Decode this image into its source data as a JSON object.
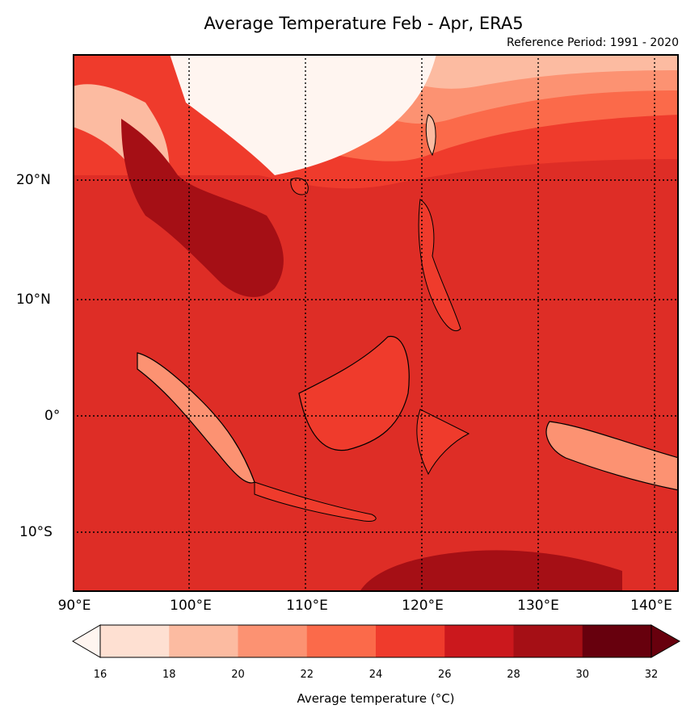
{
  "title": "Average Temperature Feb - Apr, ERA5",
  "subtitle": "Reference Period: 1991 - 2020",
  "map": {
    "lon_range": [
      90,
      142
    ],
    "lat_range": [
      -15,
      31
    ],
    "lon_ticks": [
      {
        "value": 90,
        "label": "90°E"
      },
      {
        "value": 100,
        "label": "100°E"
      },
      {
        "value": 110,
        "label": "110°E"
      },
      {
        "value": 120,
        "label": "120°E"
      },
      {
        "value": 130,
        "label": "130°E"
      },
      {
        "value": 140,
        "label": "140°E"
      }
    ],
    "lat_ticks": [
      {
        "value": 20,
        "label": "20°N"
      },
      {
        "value": 10,
        "label": "10°N"
      },
      {
        "value": 0,
        "label": "0°"
      },
      {
        "value": -10,
        "label": "10°S"
      }
    ],
    "gridlines": "dotted"
  },
  "colorbar": {
    "label": "Average temperature (°C)",
    "extend": "both",
    "levels": [
      16,
      18,
      20,
      22,
      24,
      26,
      28,
      30,
      32
    ],
    "colors": [
      "#fee0d2",
      "#fcbba1",
      "#fc9272",
      "#fb6a4a",
      "#ef3b2c",
      "#cb181d",
      "#a50f15",
      "#67000d"
    ],
    "under_color": "#fff5f0",
    "over_color": "#67000d",
    "tick_labels": [
      "16",
      "18",
      "20",
      "22",
      "24",
      "26",
      "28",
      "30",
      "32"
    ]
  }
}
